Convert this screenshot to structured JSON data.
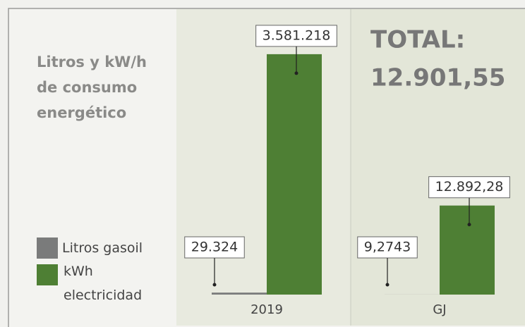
{
  "chart_data": [
    {
      "type": "bar",
      "title": "Litros y kW/h de consumo energético",
      "categories": [
        "2019"
      ],
      "series": [
        {
          "name": "Litros gasoil",
          "color": "#7a7b7b",
          "values": [
            29324
          ],
          "value_labels": [
            "29.324"
          ]
        },
        {
          "name": "kWh electricidad",
          "color": "#4e7f34",
          "values": [
            3581218
          ],
          "value_labels": [
            "3.581.218"
          ]
        }
      ],
      "ylim": [
        0,
        4000000
      ]
    },
    {
      "type": "bar",
      "categories": [
        "GJ"
      ],
      "annotations": [
        "TOTAL:",
        "12.901,55"
      ],
      "series": [
        {
          "color": "#7a7b7b",
          "values": [
            9.2743
          ],
          "value_labels": [
            "9,2743"
          ]
        },
        {
          "color": "#4e7f34",
          "values": [
            12892.28
          ],
          "value_labels": [
            "12.892,28"
          ]
        }
      ],
      "ylim": [
        0,
        15000
      ]
    }
  ]
}
